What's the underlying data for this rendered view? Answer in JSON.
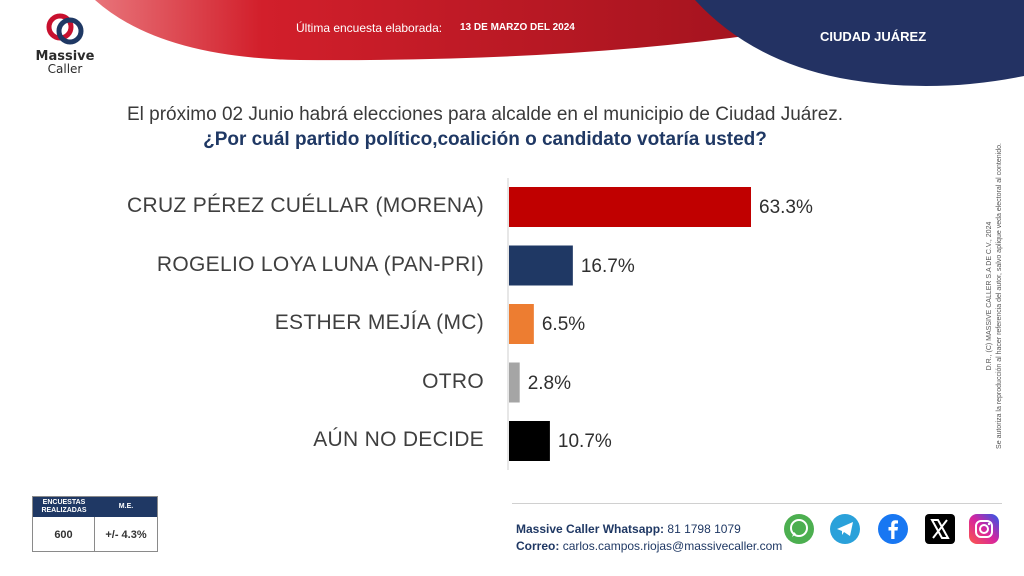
{
  "brand": {
    "line1": "Massive",
    "line2": "Caller"
  },
  "header": {
    "survey_label": "Última encuesta elaborada:",
    "survey_date": "13 DE MARZO DEL 2024",
    "city": "CIUDAD JUÁREZ"
  },
  "question": {
    "line1": "El próximo 02 Junio habrá elecciones para alcalde en el municipio de Ciudad Juárez.",
    "line2": "¿Por cuál partido político,coalición o candidato votaría usted?"
  },
  "chart_data": {
    "type": "bar",
    "orientation": "horizontal",
    "title": "¿Por cuál partido político,coalición o candidato votaría usted?",
    "categories": [
      "CRUZ PÉREZ CUÉLLAR (MORENA)",
      "ROGELIO LOYA LUNA (PAN-PRI)",
      "ESTHER MEJÍA (MC)",
      "OTRO",
      "AÚN NO DECIDE"
    ],
    "values": [
      63.3,
      16.7,
      6.5,
      2.8,
      10.7
    ],
    "value_labels": [
      "63.3%",
      "16.7%",
      "6.5%",
      "2.8%",
      "10.7%"
    ],
    "colors": [
      "#c00000",
      "#1f3864",
      "#ed7d31",
      "#a5a5a5",
      "#000000"
    ],
    "xlim": [
      0,
      100
    ],
    "unit": "%"
  },
  "side_note": {
    "line1": "D.R., (C) MASSIVE CALLER S.A DE C.V., 2024",
    "line2": "Se autoriza la reproducción al hacer referencia del autor, salvo aplique veda electoral al contenido."
  },
  "stats": {
    "header_surveys": "ENCUESTAS REALIZADAS",
    "header_me": "M.E.",
    "surveys": "600",
    "me": "+/- 4.3%"
  },
  "contact": {
    "whatsapp_label": "Massive Caller Whatsapp:",
    "whatsapp_number": "81 1798 1079",
    "email_label": "Correo:",
    "email": "carlos.campos.riojas@massivecaller.com"
  },
  "social": [
    {
      "name": "whatsapp-icon",
      "color": "#4caf50"
    },
    {
      "name": "telegram-icon",
      "color": "#2aa1da"
    },
    {
      "name": "facebook-icon",
      "color": "#1877f2"
    },
    {
      "name": "x-icon",
      "color": "#000000"
    },
    {
      "name": "instagram-icon",
      "color": "#c13584"
    }
  ]
}
